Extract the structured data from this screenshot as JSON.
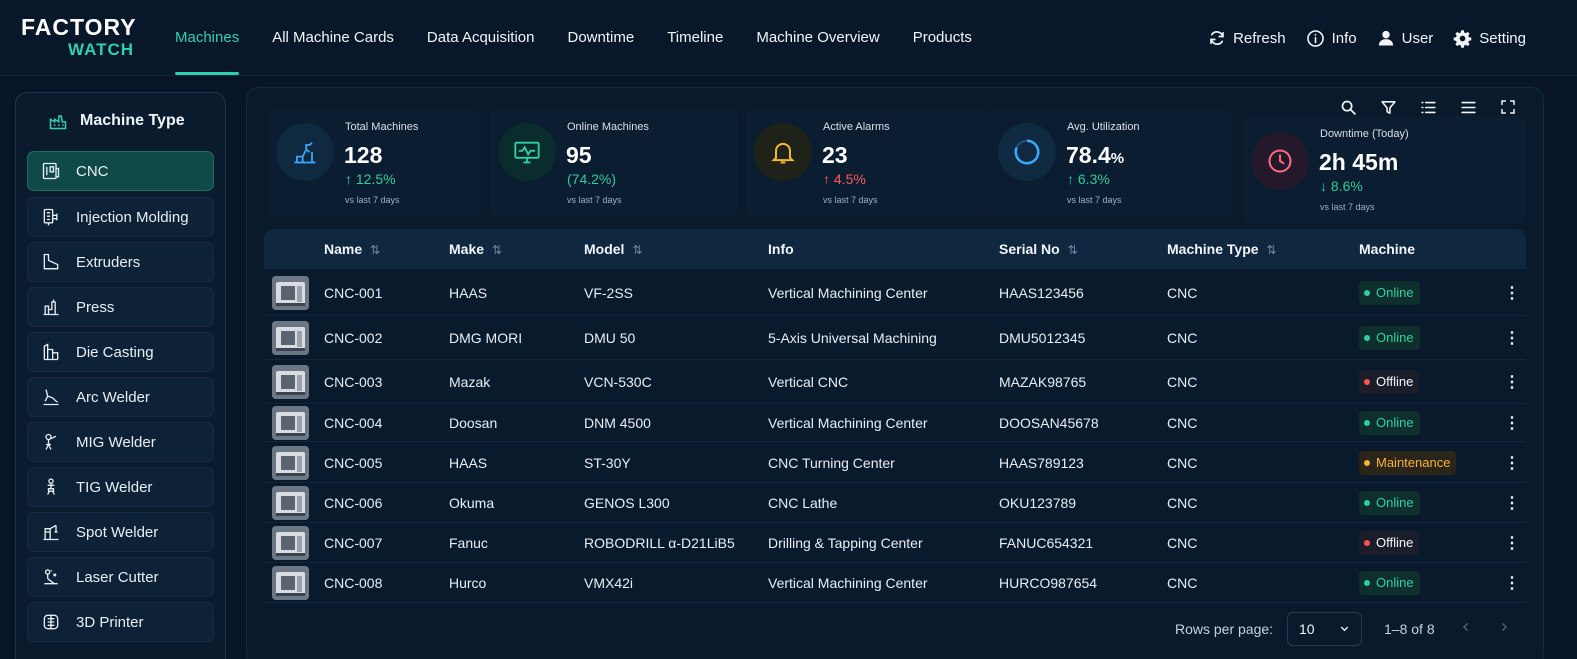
{
  "brand": {
    "line1": "FACTORY",
    "line2": "WATCH"
  },
  "nav": [
    {
      "label": "Machines"
    },
    {
      "label": "All Machine Cards"
    },
    {
      "label": "Data Acquisition"
    },
    {
      "label": "Downtime"
    },
    {
      "label": "Timeline"
    },
    {
      "label": "Machine Overview"
    },
    {
      "label": "Products"
    }
  ],
  "actions": {
    "refresh": "Refresh",
    "info": "Info",
    "user": "User",
    "setting": "Setting"
  },
  "sidebar": {
    "title": "Machine Type",
    "items": [
      {
        "label": "CNC"
      },
      {
        "label": "Injection Molding"
      },
      {
        "label": "Extruders"
      },
      {
        "label": "Press"
      },
      {
        "label": "Die Casting"
      },
      {
        "label": "Arc Welder"
      },
      {
        "label": "MIG Welder"
      },
      {
        "label": "TIG Welder"
      },
      {
        "label": "Spot Welder"
      },
      {
        "label": "Laser Cutter"
      },
      {
        "label": "3D Printer"
      }
    ]
  },
  "kpis": [
    {
      "label": "Total Machines",
      "value": "128",
      "unit": "",
      "change": "↑ 12.5%",
      "sub": "vs last 7 days"
    },
    {
      "label": "Online Machines",
      "value": "95",
      "unit": "",
      "change": "(74.2%)",
      "sub": "vs last 7 days"
    },
    {
      "label": "Active Alarms",
      "value": "23",
      "unit": "",
      "change": "↑ 4.5%",
      "sub": "vs last 7 days"
    },
    {
      "label": "Avg. Utilization",
      "value": "78.4",
      "unit": "%",
      "change": "↑ 6.3%",
      "sub": "vs last 7 days"
    },
    {
      "label": "Downtime (Today)",
      "value": "2h 45m",
      "unit": "",
      "change": "↓ 8.6%",
      "sub": "vs last 7 days"
    }
  ],
  "colors": {
    "accent": "#2fd0b0",
    "online": "#2fd0a0",
    "offline": "#ff5353",
    "maintenance": "#f7b23b",
    "alarm": "#f5b82e",
    "downtime": "#ff6b86"
  },
  "table": {
    "columns": {
      "name": "Name",
      "make": "Make",
      "model": "Model",
      "info": "Info",
      "serial": "Serial No",
      "type": "Machine Type",
      "machine": "Machine"
    },
    "rows": [
      {
        "name": "CNC-001",
        "make": "HAAS",
        "model": "VF-2SS",
        "info": "Vertical Machining Center",
        "serial": "HAAS123456",
        "type": "CNC",
        "status": "Online"
      },
      {
        "name": "CNC-002",
        "make": "DMG MORI",
        "model": "DMU 50",
        "info": "5-Axis Universal Machining",
        "serial": "DMU5012345",
        "type": "CNC",
        "status": "Online"
      },
      {
        "name": "CNC-003",
        "make": "Mazak",
        "model": "VCN-530C",
        "info": "Vertical CNC",
        "serial": "MAZAK98765",
        "type": "CNC",
        "status": "Offline"
      },
      {
        "name": "CNC-004",
        "make": "Doosan",
        "model": "DNM 4500",
        "info": "Vertical Machining Center",
        "serial": "DOOSAN45678",
        "type": "CNC",
        "status": "Online"
      },
      {
        "name": "CNC-005",
        "make": "HAAS",
        "model": "ST-30Y",
        "info": "CNC Turning Center",
        "serial": "HAAS789123",
        "type": "CNC",
        "status": "Maintenance"
      },
      {
        "name": "CNC-006",
        "make": "Okuma",
        "model": "GENOS L300",
        "info": "CNC Lathe",
        "serial": "OKU123789",
        "type": "CNC",
        "status": "Online"
      },
      {
        "name": "CNC-007",
        "make": "Fanuc",
        "model": "ROBODRILL α-D21LiB5",
        "info": "Drilling & Tapping Center",
        "serial": "FANUC654321",
        "type": "CNC",
        "status": "Offline"
      },
      {
        "name": "CNC-008",
        "make": "Hurco",
        "model": "VMX42i",
        "info": "Vertical Machining Center",
        "serial": "HURCO987654",
        "type": "CNC",
        "status": "Online"
      }
    ]
  },
  "pagination": {
    "rows_label": "Rows per page:",
    "rows_value": "10",
    "range": "1–8 of 8"
  }
}
